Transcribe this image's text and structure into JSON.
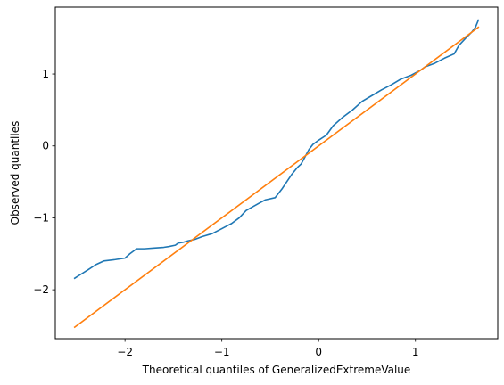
{
  "chart_data": {
    "type": "line",
    "title": "",
    "xlabel": "Theoretical quantiles of GeneralizedExtremeValue",
    "ylabel": "Observed quantiles",
    "xlim": [
      -2.72,
      1.85
    ],
    "ylim": [
      -2.68,
      1.93
    ],
    "x_ticks": [
      -2,
      -1,
      0,
      1
    ],
    "x_tick_labels": [
      "−2",
      "−1",
      "0",
      "1"
    ],
    "y_ticks": [
      -2,
      -1,
      0,
      1
    ],
    "y_tick_labels": [
      "−2",
      "−1",
      "0",
      "1"
    ],
    "grid": false,
    "legend": "none",
    "series": [
      {
        "color": "#1f77b4",
        "x": [
          -2.52,
          -2.45,
          -2.38,
          -2.3,
          -2.22,
          -2.1,
          -2.0,
          -1.95,
          -1.88,
          -1.8,
          -1.7,
          -1.6,
          -1.55,
          -1.48,
          -1.45,
          -1.4,
          -1.35,
          -1.28,
          -1.2,
          -1.1,
          -1.0,
          -0.9,
          -0.82,
          -0.75,
          -0.7,
          -0.62,
          -0.55,
          -0.45,
          -0.38,
          -0.33,
          -0.28,
          -0.22,
          -0.18,
          -0.14,
          -0.1,
          -0.06,
          0.0,
          0.08,
          0.15,
          0.25,
          0.35,
          0.45,
          0.55,
          0.65,
          0.75,
          0.85,
          0.95,
          1.05,
          1.1,
          1.2,
          1.3,
          1.4,
          1.45,
          1.52,
          1.58,
          1.62,
          1.65
        ],
        "y": [
          -1.84,
          -1.78,
          -1.72,
          -1.65,
          -1.6,
          -1.58,
          -1.56,
          -1.5,
          -1.43,
          -1.43,
          -1.42,
          -1.41,
          -1.4,
          -1.38,
          -1.35,
          -1.34,
          -1.32,
          -1.3,
          -1.26,
          -1.22,
          -1.15,
          -1.08,
          -1.0,
          -0.9,
          -0.86,
          -0.8,
          -0.75,
          -0.72,
          -0.6,
          -0.5,
          -0.4,
          -0.3,
          -0.25,
          -0.15,
          -0.05,
          0.02,
          0.08,
          0.15,
          0.28,
          0.4,
          0.5,
          0.62,
          0.7,
          0.78,
          0.85,
          0.93,
          0.98,
          1.05,
          1.1,
          1.15,
          1.22,
          1.28,
          1.4,
          1.5,
          1.58,
          1.65,
          1.75
        ]
      },
      {
        "color": "#ff7f0e",
        "x": [
          -2.52,
          1.65
        ],
        "y": [
          -2.52,
          1.65
        ]
      }
    ]
  }
}
